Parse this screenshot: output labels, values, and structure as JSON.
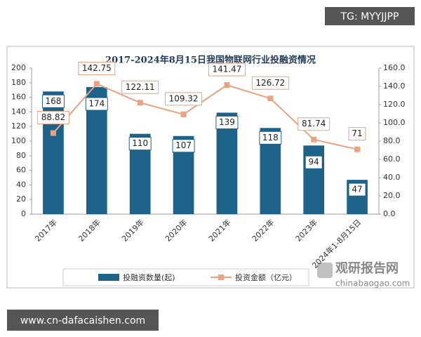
{
  "chart_data": {
    "type": "bar-line",
    "title": "2017-2024年8月15日我国物联网行业投融资情况",
    "categories": [
      "2017年",
      "2018年",
      "2019年",
      "2020年",
      "2021年",
      "2022年",
      "2023年",
      "2024年1-8月15日"
    ],
    "series": [
      {
        "name": "投融资数量(起)",
        "type": "bar",
        "color": "#1d6389",
        "values": [
          168,
          174,
          110,
          107,
          139,
          118,
          94,
          47
        ]
      },
      {
        "name": "投资金额（亿元）",
        "type": "line",
        "axis": "y2",
        "color": "#e9a282",
        "values": [
          88.82,
          142.75,
          122.11,
          109.32,
          141.47,
          126.72,
          81.74,
          71
        ]
      }
    ],
    "ylim": [
      0,
      200
    ],
    "yticks": [
      0,
      20,
      40,
      60,
      80,
      100,
      120,
      140,
      160,
      180,
      200
    ],
    "y2lim": [
      0,
      160
    ],
    "y2ticks": [
      {
        "value": 0,
        "label": "0.0"
      },
      {
        "value": 20,
        "label": "20.0"
      },
      {
        "value": 40,
        "label": "40.0"
      },
      {
        "value": 60,
        "label": "60.0"
      },
      {
        "value": 80,
        "label": "80.0"
      },
      {
        "value": 100,
        "label": "100.0"
      },
      {
        "value": 120,
        "label": "120.0"
      },
      {
        "value": 140,
        "label": "140.0"
      },
      {
        "value": 160,
        "label": "160.0"
      }
    ],
    "grid": false,
    "legend": "bottom"
  },
  "overlay": {
    "tg": "TG: MYYJJPP",
    "site": "www.cn-dafacaishen.com",
    "logo": "观研报告网",
    "logo_url": "chinabaogao.com"
  }
}
